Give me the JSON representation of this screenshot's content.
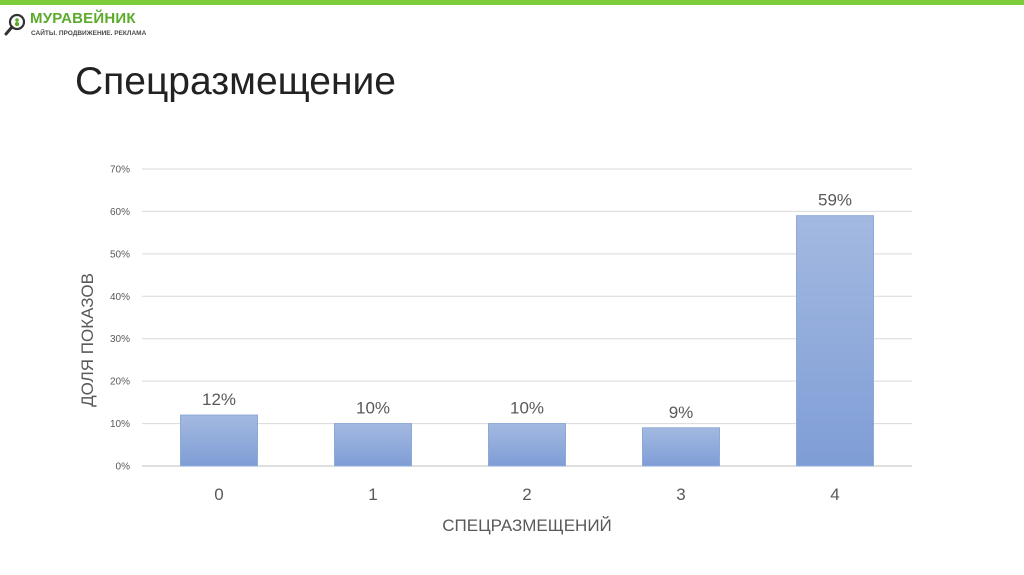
{
  "logo": {
    "name": "МУРАВЕЙНИК",
    "tagline": "САЙТЫ. ПРОДВИЖЕНИЕ. РЕКЛАМА",
    "icon": "magnifier-ant-icon",
    "brand_color": "#5cab2c"
  },
  "slide": {
    "title": "Спецразмещение"
  },
  "chart_data": {
    "type": "bar",
    "categories": [
      "0",
      "1",
      "2",
      "3",
      "4"
    ],
    "values": [
      12,
      10,
      10,
      9,
      59
    ],
    "data_labels": [
      "12%",
      "10%",
      "10%",
      "9%",
      "59%"
    ],
    "xlabel": "СПЕЦРАЗМЕЩЕНИЙ",
    "ylabel": "ДОЛЯ ПОКАЗОВ",
    "ylim": [
      0,
      70
    ],
    "yticks": [
      0,
      10,
      20,
      30,
      40,
      50,
      60,
      70
    ],
    "ytick_labels": [
      "0%",
      "10%",
      "20%",
      "30%",
      "40%",
      "50%",
      "60%",
      "70%"
    ],
    "grid": true,
    "legend": "none",
    "bar_color": "#8eaadb"
  }
}
